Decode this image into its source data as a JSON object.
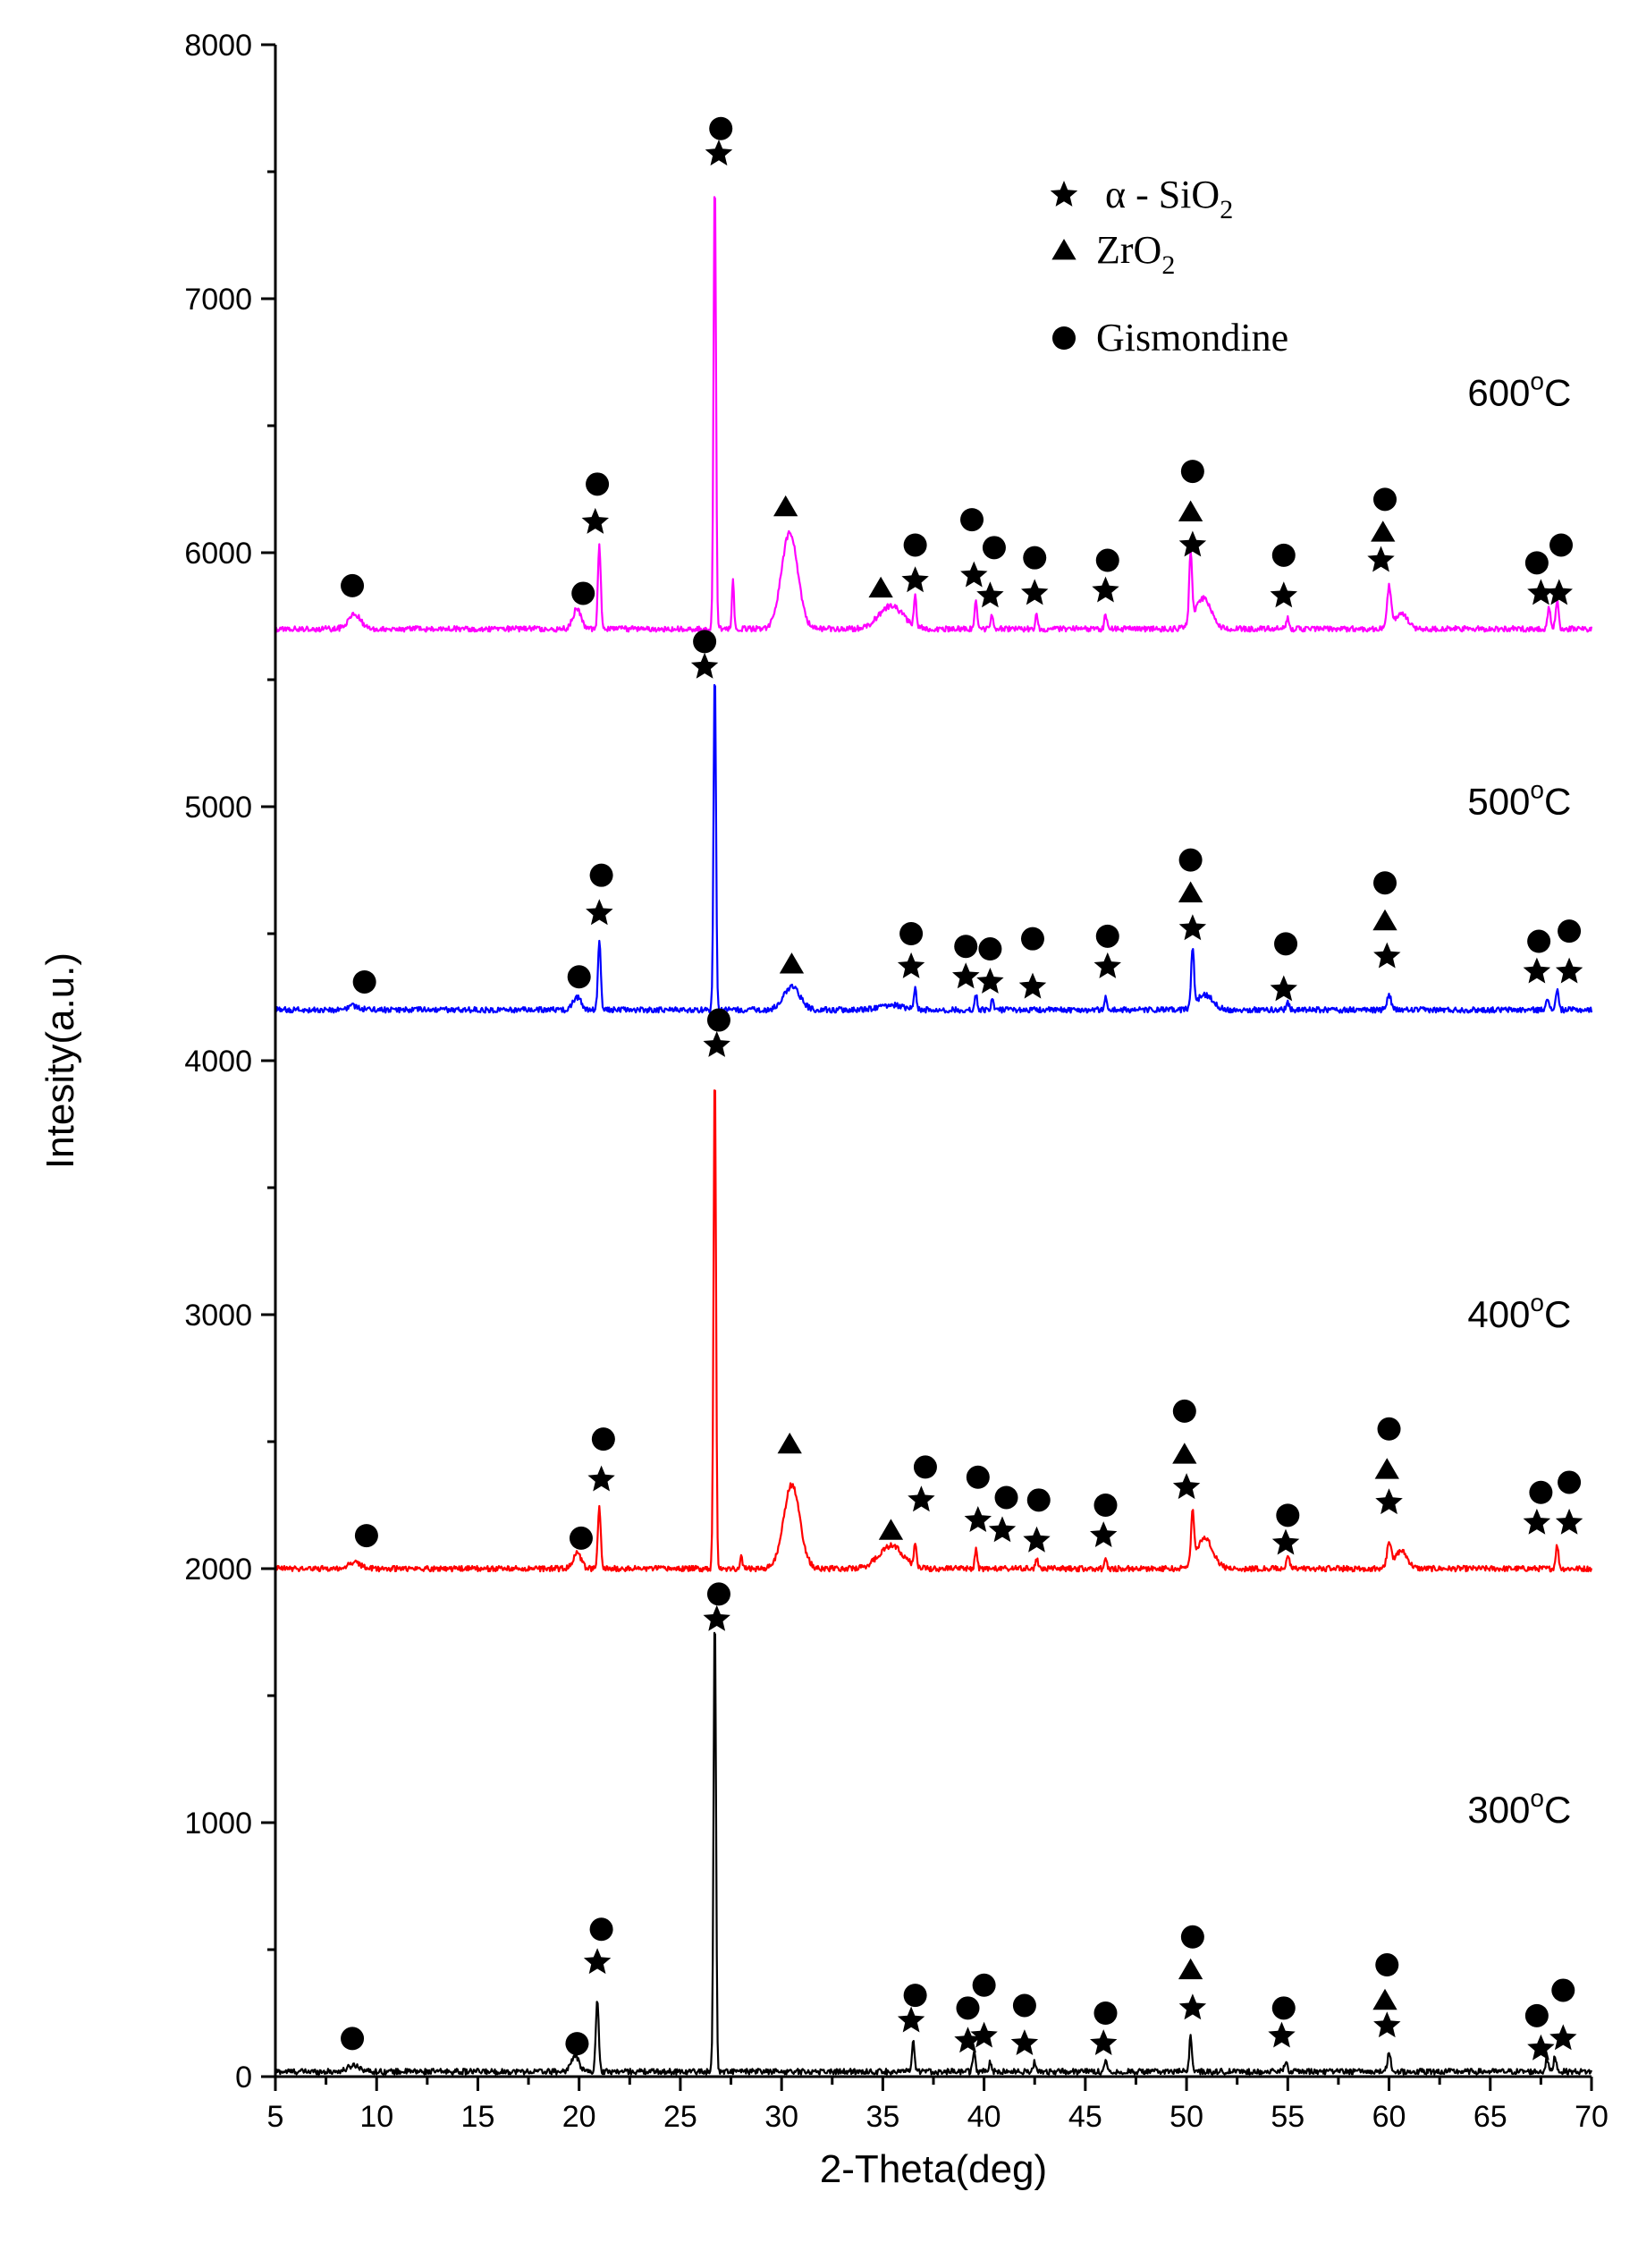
{
  "chart_data": {
    "type": "line",
    "title": "",
    "xlabel": "2-Theta(deg)",
    "ylabel": "Intesity(a.u.)",
    "xlim": [
      5,
      70
    ],
    "ylim": [
      0,
      8000
    ],
    "xticks": [
      "5",
      "10",
      "15",
      "20",
      "25",
      "30",
      "35",
      "40",
      "45",
      "50",
      "55",
      "60",
      "65",
      "70"
    ],
    "yticks": [
      "0",
      "1000",
      "2000",
      "3000",
      "4000",
      "5000",
      "6000",
      "7000",
      "8000"
    ],
    "legend": {
      "position": "top-right",
      "items": [
        {
          "marker": "star",
          "symbol": "α",
          "text": " - SiO",
          "sub": "2"
        },
        {
          "marker": "triangle",
          "symbol": "",
          "text": "ZrO",
          "sub": "2"
        },
        {
          "marker": "circle",
          "symbol": "",
          "text": "Gismondine",
          "sub": ""
        }
      ]
    },
    "series": [
      {
        "name": "300°C",
        "label_text": "300",
        "label_suffix": "C",
        "label_degree": "o",
        "label_x": 69,
        "label_y": 1000,
        "color": "#000000",
        "baseline": 20,
        "peaks": [
          [
            8.9,
            25,
            0.3
          ],
          [
            19.8,
            60,
            0.2
          ],
          [
            20.9,
            290,
            0.07
          ],
          [
            26.7,
            1820,
            0.06
          ],
          [
            36.5,
            120,
            0.06
          ],
          [
            39.5,
            80,
            0.06
          ],
          [
            40.3,
            40,
            0.06
          ],
          [
            42.5,
            40,
            0.06
          ],
          [
            46.0,
            50,
            0.06
          ],
          [
            50.2,
            150,
            0.06
          ],
          [
            54.9,
            40,
            0.08
          ],
          [
            60.0,
            70,
            0.08
          ],
          [
            67.8,
            50,
            0.07
          ],
          [
            68.2,
            60,
            0.07
          ]
        ],
        "markers": [
          {
            "type": "circle",
            "x": 8.8,
            "y": 150
          },
          {
            "type": "circle",
            "x": 19.9,
            "y": 130
          },
          {
            "type": "star",
            "x": 20.9,
            "y": 450
          },
          {
            "type": "circle",
            "x": 21.1,
            "y": 580
          },
          {
            "type": "star",
            "x": 26.8,
            "y": 1800
          },
          {
            "type": "circle",
            "x": 26.9,
            "y": 1900
          },
          {
            "type": "star",
            "x": 36.4,
            "y": 220
          },
          {
            "type": "circle",
            "x": 36.6,
            "y": 320
          },
          {
            "type": "circle",
            "x": 39.2,
            "y": 270
          },
          {
            "type": "star",
            "x": 39.2,
            "y": 140
          },
          {
            "type": "circle",
            "x": 40.0,
            "y": 360
          },
          {
            "type": "star",
            "x": 40.0,
            "y": 160
          },
          {
            "type": "circle",
            "x": 42.0,
            "y": 280
          },
          {
            "type": "star",
            "x": 42.0,
            "y": 130
          },
          {
            "type": "circle",
            "x": 46.0,
            "y": 250
          },
          {
            "type": "star",
            "x": 45.9,
            "y": 130
          },
          {
            "type": "circle",
            "x": 50.3,
            "y": 550
          },
          {
            "type": "triangle",
            "x": 50.2,
            "y": 420
          },
          {
            "type": "star",
            "x": 50.3,
            "y": 270
          },
          {
            "type": "circle",
            "x": 54.8,
            "y": 270
          },
          {
            "type": "star",
            "x": 54.7,
            "y": 160
          },
          {
            "type": "circle",
            "x": 59.9,
            "y": 440
          },
          {
            "type": "triangle",
            "x": 59.8,
            "y": 300
          },
          {
            "type": "star",
            "x": 59.9,
            "y": 200
          },
          {
            "type": "circle",
            "x": 67.3,
            "y": 240
          },
          {
            "type": "star",
            "x": 67.5,
            "y": 110
          },
          {
            "type": "circle",
            "x": 68.6,
            "y": 340
          },
          {
            "type": "star",
            "x": 68.6,
            "y": 150
          }
        ]
      },
      {
        "name": "400°C",
        "label_text": "400",
        "label_suffix": "C",
        "label_degree": "o",
        "label_x": 69,
        "label_y": 2950,
        "color": "#ff0000",
        "baseline": 2000,
        "peaks": [
          [
            8.9,
            25,
            0.3
          ],
          [
            19.9,
            60,
            0.2
          ],
          [
            21.0,
            240,
            0.07
          ],
          [
            26.7,
            2000,
            0.06
          ],
          [
            28.0,
            60,
            0.05
          ],
          [
            30.5,
            330,
            0.4
          ],
          [
            35.4,
            90,
            0.6
          ],
          [
            36.6,
            90,
            0.06
          ],
          [
            39.6,
            80,
            0.06
          ],
          [
            42.6,
            40,
            0.06
          ],
          [
            46.0,
            40,
            0.06
          ],
          [
            50.3,
            200,
            0.07
          ],
          [
            50.9,
            120,
            0.4
          ],
          [
            55.0,
            50,
            0.08
          ],
          [
            60.0,
            100,
            0.1
          ],
          [
            60.6,
            70,
            0.3
          ],
          [
            68.3,
            90,
            0.07
          ]
        ],
        "markers": [
          {
            "type": "circle",
            "x": 9.5,
            "y": 2130
          },
          {
            "type": "circle",
            "x": 20.1,
            "y": 2120
          },
          {
            "type": "star",
            "x": 21.1,
            "y": 2350
          },
          {
            "type": "circle",
            "x": 21.2,
            "y": 2510
          },
          {
            "type": "star",
            "x": 26.8,
            "y": 4060
          },
          {
            "type": "circle",
            "x": 26.9,
            "y": 4160
          },
          {
            "type": "triangle",
            "x": 30.4,
            "y": 2490
          },
          {
            "type": "triangle",
            "x": 35.4,
            "y": 2150
          },
          {
            "type": "star",
            "x": 36.9,
            "y": 2270
          },
          {
            "type": "circle",
            "x": 37.1,
            "y": 2400
          },
          {
            "type": "circle",
            "x": 39.7,
            "y": 2360
          },
          {
            "type": "star",
            "x": 39.7,
            "y": 2190
          },
          {
            "type": "circle",
            "x": 41.1,
            "y": 2280
          },
          {
            "type": "star",
            "x": 40.9,
            "y": 2150
          },
          {
            "type": "circle",
            "x": 42.7,
            "y": 2270
          },
          {
            "type": "star",
            "x": 42.6,
            "y": 2110
          },
          {
            "type": "circle",
            "x": 46.0,
            "y": 2250
          },
          {
            "type": "star",
            "x": 45.9,
            "y": 2130
          },
          {
            "type": "circle",
            "x": 49.9,
            "y": 2620
          },
          {
            "type": "triangle",
            "x": 49.9,
            "y": 2450
          },
          {
            "type": "star",
            "x": 50.0,
            "y": 2320
          },
          {
            "type": "circle",
            "x": 55.0,
            "y": 2210
          },
          {
            "type": "star",
            "x": 54.9,
            "y": 2100
          },
          {
            "type": "circle",
            "x": 60.0,
            "y": 2550
          },
          {
            "type": "triangle",
            "x": 59.9,
            "y": 2390
          },
          {
            "type": "star",
            "x": 60.0,
            "y": 2260
          },
          {
            "type": "circle",
            "x": 67.5,
            "y": 2300
          },
          {
            "type": "star",
            "x": 67.3,
            "y": 2180
          },
          {
            "type": "circle",
            "x": 68.9,
            "y": 2340
          },
          {
            "type": "star",
            "x": 68.9,
            "y": 2180
          }
        ]
      },
      {
        "name": "500°C",
        "label_text": "500",
        "label_suffix": "C",
        "label_degree": "o",
        "label_x": 69,
        "label_y": 4970,
        "color": "#0000ff",
        "baseline": 4200,
        "peaks": [
          [
            8.9,
            15,
            0.3
          ],
          [
            19.9,
            50,
            0.2
          ],
          [
            21.0,
            270,
            0.07
          ],
          [
            26.7,
            1350,
            0.06
          ],
          [
            30.5,
            90,
            0.4
          ],
          [
            35.4,
            20,
            0.6
          ],
          [
            36.6,
            80,
            0.06
          ],
          [
            39.6,
            60,
            0.06
          ],
          [
            40.4,
            40,
            0.06
          ],
          [
            46.0,
            50,
            0.06
          ],
          [
            50.3,
            230,
            0.07
          ],
          [
            50.9,
            60,
            0.4
          ],
          [
            55.0,
            30,
            0.08
          ],
          [
            60.0,
            60,
            0.1
          ],
          [
            67.8,
            50,
            0.07
          ],
          [
            68.3,
            80,
            0.07
          ]
        ],
        "markers": [
          {
            "type": "circle",
            "x": 9.4,
            "y": 4310
          },
          {
            "type": "circle",
            "x": 20.0,
            "y": 4330
          },
          {
            "type": "star",
            "x": 21.0,
            "y": 4580
          },
          {
            "type": "circle",
            "x": 21.1,
            "y": 4730
          },
          {
            "type": "star",
            "x": 26.2,
            "y": 5550
          },
          {
            "type": "circle",
            "x": 26.2,
            "y": 5650
          },
          {
            "type": "triangle",
            "x": 30.5,
            "y": 4380
          },
          {
            "type": "circle",
            "x": 36.4,
            "y": 4500
          },
          {
            "type": "star",
            "x": 36.4,
            "y": 4370
          },
          {
            "type": "circle",
            "x": 39.1,
            "y": 4450
          },
          {
            "type": "star",
            "x": 39.1,
            "y": 4330
          },
          {
            "type": "circle",
            "x": 40.3,
            "y": 4440
          },
          {
            "type": "star",
            "x": 40.3,
            "y": 4310
          },
          {
            "type": "circle",
            "x": 42.4,
            "y": 4480
          },
          {
            "type": "star",
            "x": 42.4,
            "y": 4290
          },
          {
            "type": "circle",
            "x": 46.1,
            "y": 4490
          },
          {
            "type": "star",
            "x": 46.1,
            "y": 4370
          },
          {
            "type": "circle",
            "x": 50.2,
            "y": 4790
          },
          {
            "type": "triangle",
            "x": 50.2,
            "y": 4660
          },
          {
            "type": "star",
            "x": 50.3,
            "y": 4520
          },
          {
            "type": "circle",
            "x": 54.9,
            "y": 4460
          },
          {
            "type": "star",
            "x": 54.8,
            "y": 4280
          },
          {
            "type": "circle",
            "x": 59.8,
            "y": 4700
          },
          {
            "type": "triangle",
            "x": 59.8,
            "y": 4550
          },
          {
            "type": "star",
            "x": 59.9,
            "y": 4410
          },
          {
            "type": "circle",
            "x": 67.4,
            "y": 4470
          },
          {
            "type": "star",
            "x": 67.3,
            "y": 4350
          },
          {
            "type": "circle",
            "x": 68.9,
            "y": 4510
          },
          {
            "type": "star",
            "x": 68.9,
            "y": 4350
          }
        ]
      },
      {
        "name": "600°C",
        "label_text": "600",
        "label_suffix": "C",
        "label_degree": "o",
        "label_x": 69,
        "label_y": 6580,
        "color": "#ff00ff",
        "baseline": 5700,
        "peaks": [
          [
            8.9,
            60,
            0.3
          ],
          [
            19.9,
            80,
            0.2
          ],
          [
            21.0,
            330,
            0.07
          ],
          [
            26.7,
            1800,
            0.06
          ],
          [
            27.6,
            200,
            0.05
          ],
          [
            30.4,
            380,
            0.4
          ],
          [
            35.4,
            90,
            0.6
          ],
          [
            36.6,
            120,
            0.06
          ],
          [
            39.6,
            120,
            0.06
          ],
          [
            40.4,
            60,
            0.06
          ],
          [
            42.6,
            60,
            0.06
          ],
          [
            46.0,
            60,
            0.06
          ],
          [
            50.2,
            260,
            0.07
          ],
          [
            50.8,
            120,
            0.4
          ],
          [
            55.0,
            40,
            0.08
          ],
          [
            60.0,
            160,
            0.1
          ],
          [
            60.6,
            60,
            0.3
          ],
          [
            67.9,
            80,
            0.07
          ],
          [
            68.3,
            110,
            0.07
          ]
        ],
        "markers": [
          {
            "type": "circle",
            "x": 8.8,
            "y": 5870
          },
          {
            "type": "circle",
            "x": 20.2,
            "y": 5840
          },
          {
            "type": "star",
            "x": 20.8,
            "y": 6120
          },
          {
            "type": "circle",
            "x": 20.9,
            "y": 6270
          },
          {
            "type": "star",
            "x": 26.9,
            "y": 7570
          },
          {
            "type": "circle",
            "x": 27.0,
            "y": 7670
          },
          {
            "type": "triangle",
            "x": 30.2,
            "y": 6180
          },
          {
            "type": "triangle",
            "x": 34.9,
            "y": 5860
          },
          {
            "type": "circle",
            "x": 36.6,
            "y": 6030
          },
          {
            "type": "star",
            "x": 36.6,
            "y": 5890
          },
          {
            "type": "circle",
            "x": 39.4,
            "y": 6130
          },
          {
            "type": "star",
            "x": 39.5,
            "y": 5910
          },
          {
            "type": "circle",
            "x": 40.5,
            "y": 6020
          },
          {
            "type": "star",
            "x": 40.3,
            "y": 5830
          },
          {
            "type": "circle",
            "x": 42.5,
            "y": 5980
          },
          {
            "type": "star",
            "x": 42.5,
            "y": 5840
          },
          {
            "type": "circle",
            "x": 46.1,
            "y": 5970
          },
          {
            "type": "star",
            "x": 46.0,
            "y": 5850
          },
          {
            "type": "circle",
            "x": 50.3,
            "y": 6320
          },
          {
            "type": "triangle",
            "x": 50.2,
            "y": 6160
          },
          {
            "type": "star",
            "x": 50.3,
            "y": 6030
          },
          {
            "type": "circle",
            "x": 54.8,
            "y": 5990
          },
          {
            "type": "star",
            "x": 54.8,
            "y": 5830
          },
          {
            "type": "circle",
            "x": 59.8,
            "y": 6210
          },
          {
            "type": "triangle",
            "x": 59.7,
            "y": 6080
          },
          {
            "type": "star",
            "x": 59.6,
            "y": 5970
          },
          {
            "type": "circle",
            "x": 67.3,
            "y": 5960
          },
          {
            "type": "star",
            "x": 67.5,
            "y": 5840
          },
          {
            "type": "circle",
            "x": 68.5,
            "y": 6030
          },
          {
            "type": "star",
            "x": 68.4,
            "y": 5840
          }
        ]
      }
    ]
  }
}
